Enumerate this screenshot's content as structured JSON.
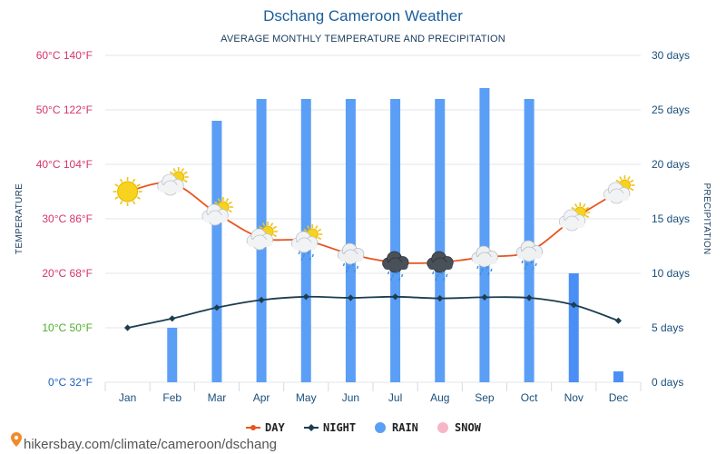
{
  "header": {
    "title": "Dschang Cameroon Weather",
    "subtitle": "AVERAGE MONTHLY TEMPERATURE AND PRECIPITATION"
  },
  "axes": {
    "left_title": "TEMPERATURE",
    "right_title": "PRECIPITATION",
    "left_ticks": [
      {
        "label": "0°C 32°F",
        "value": 0,
        "color": "#1f5fbf"
      },
      {
        "label": "10°C 50°F",
        "value": 10,
        "color": "#4caf2a"
      },
      {
        "label": "20°C 68°F",
        "value": 20,
        "color": "#d6336c"
      },
      {
        "label": "30°C 86°F",
        "value": 30,
        "color": "#d6336c"
      },
      {
        "label": "40°C 104°F",
        "value": 40,
        "color": "#d6336c"
      },
      {
        "label": "50°C 122°F",
        "value": 50,
        "color": "#d6336c"
      },
      {
        "label": "60°C 140°F",
        "value": 60,
        "color": "#d6336c"
      }
    ],
    "right_ticks": [
      {
        "label": "0 days",
        "value": 0
      },
      {
        "label": "5 days",
        "value": 5
      },
      {
        "label": "10 days",
        "value": 10
      },
      {
        "label": "15 days",
        "value": 15
      },
      {
        "label": "20 days",
        "value": 20
      },
      {
        "label": "25 days",
        "value": 25
      },
      {
        "label": "30 days",
        "value": 30
      }
    ]
  },
  "chart_data": {
    "type": "line",
    "title": "Dschang Cameroon Weather",
    "subtitle": "AVERAGE MONTHLY TEMPERATURE AND PRECIPITATION",
    "categories": [
      "Jan",
      "Feb",
      "Mar",
      "Apr",
      "May",
      "Jun",
      "Jul",
      "Aug",
      "Sep",
      "Oct",
      "Nov",
      "Dec"
    ],
    "ylabel": "TEMPERATURE",
    "y2label": "PRECIPITATION",
    "ylim": [
      0,
      60
    ],
    "y2lim": [
      0,
      30
    ],
    "grid": true,
    "legend_position": "bottom",
    "series": [
      {
        "name": "DAY",
        "type": "line",
        "axis": "left",
        "color": "#e8541e",
        "values": [
          35,
          36.5,
          31,
          26.5,
          26,
          23.5,
          22,
          22,
          23,
          24,
          30,
          35
        ]
      },
      {
        "name": "NIGHT",
        "type": "line",
        "axis": "left",
        "color": "#1c3d4f",
        "values": [
          10,
          11.7,
          13.7,
          15.1,
          15.7,
          15.5,
          15.7,
          15.4,
          15.6,
          15.5,
          14.2,
          11.3
        ]
      },
      {
        "name": "RAIN",
        "type": "bar",
        "axis": "right",
        "color": "#5b9ef5",
        "values": [
          0,
          5,
          24,
          26,
          26,
          26,
          26,
          26,
          27,
          26,
          10,
          1
        ]
      },
      {
        "name": "SNOW",
        "type": "bar",
        "axis": "right",
        "color": "#f7b6c8",
        "values": [
          0,
          0,
          0,
          0,
          0,
          0,
          0,
          0,
          0,
          0,
          0,
          0
        ]
      }
    ],
    "weather_icons": [
      "sun",
      "sun-cloud",
      "sun-cloud",
      "sun-cloud",
      "sun-cloud-rain",
      "cloud-rain",
      "dark-cloud-rain",
      "dark-cloud-rain",
      "cloud-rain",
      "cloud-rain",
      "sun-cloud",
      "sun-cloud"
    ]
  },
  "legend": [
    {
      "label": "DAY",
      "color": "#e8541e",
      "marker": "line-dot"
    },
    {
      "label": "NIGHT",
      "color": "#1c3d4f",
      "marker": "line-diamond"
    },
    {
      "label": "RAIN",
      "color": "#5b9ef5",
      "marker": "circle"
    },
    {
      "label": "SNOW",
      "color": "#f7b6c8",
      "marker": "circle"
    }
  ],
  "footer": {
    "source": "hikersbay.com/climate/cameroon/dschang",
    "icon": "map-pin-icon"
  }
}
